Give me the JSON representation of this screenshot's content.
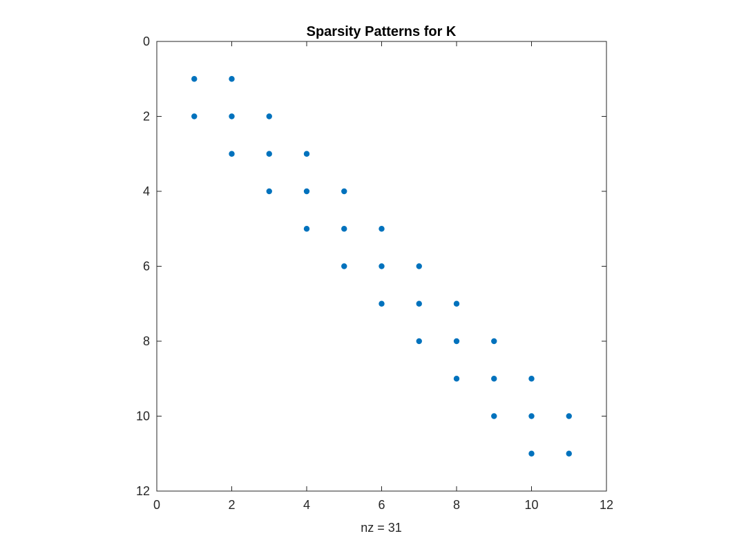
{
  "chart_data": {
    "type": "scatter",
    "title": "Sparsity Patterns for K",
    "xlabel": "nz = 31",
    "ylabel": "",
    "xlim": [
      0,
      12
    ],
    "ylim": [
      0,
      12
    ],
    "y_reversed": true,
    "x_ticks": [
      "0",
      "2",
      "4",
      "6",
      "8",
      "10",
      "12"
    ],
    "y_ticks": [
      "0",
      "2",
      "4",
      "6",
      "8",
      "10",
      "12"
    ],
    "grid": false,
    "marker_color": "#0072BD",
    "series": [
      {
        "points": [
          [
            1,
            1
          ],
          [
            2,
            1
          ],
          [
            1,
            2
          ],
          [
            2,
            2
          ],
          [
            3,
            2
          ],
          [
            2,
            3
          ],
          [
            3,
            3
          ],
          [
            4,
            3
          ],
          [
            3,
            4
          ],
          [
            4,
            4
          ],
          [
            5,
            4
          ],
          [
            4,
            5
          ],
          [
            5,
            5
          ],
          [
            6,
            5
          ],
          [
            5,
            6
          ],
          [
            6,
            6
          ],
          [
            7,
            6
          ],
          [
            6,
            7
          ],
          [
            7,
            7
          ],
          [
            8,
            7
          ],
          [
            7,
            8
          ],
          [
            8,
            8
          ],
          [
            9,
            8
          ],
          [
            8,
            9
          ],
          [
            9,
            9
          ],
          [
            10,
            9
          ],
          [
            9,
            10
          ],
          [
            10,
            10
          ],
          [
            11,
            10
          ],
          [
            10,
            11
          ],
          [
            11,
            11
          ]
        ]
      }
    ]
  }
}
